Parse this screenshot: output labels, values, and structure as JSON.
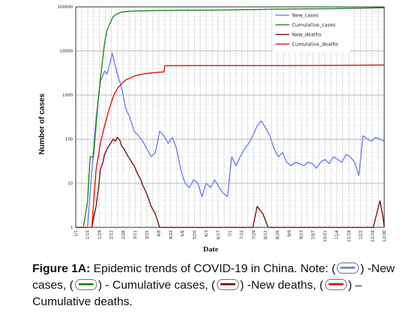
{
  "chart_data": {
    "type": "line",
    "title": "",
    "xlabel": "Date",
    "ylabel": "Number of cases",
    "y_scale": "log",
    "ylim": [
      1,
      100000
    ],
    "y_ticks": [
      1,
      10,
      100,
      1000,
      10000,
      100000
    ],
    "y_tick_labels": [
      "1",
      "10",
      "100",
      "1000",
      "10000",
      "100000"
    ],
    "x_tick_labels": [
      "1/1",
      "1/15",
      "1/29",
      "2/12",
      "2/26",
      "3/11",
      "3/25",
      "4/8",
      "4/22",
      "5/6",
      "5/20",
      "6/3",
      "6/17",
      "7/1",
      "7/15",
      "7/29",
      "8/12",
      "8/26",
      "9/9",
      "9/23",
      "10/7",
      "10/21",
      "11/4",
      "11/18",
      "12/2",
      "12/16",
      "12/30"
    ],
    "grid": true,
    "legend_position": "top-right",
    "series": [
      {
        "name": "New_cases",
        "color": "#6f7ff0",
        "x": [
          1,
          15,
          20,
          25,
          30,
          35,
          38,
          42,
          44,
          50,
          55,
          60,
          65,
          70,
          75,
          80,
          85,
          90,
          95,
          100,
          105,
          110,
          115,
          120,
          125,
          130,
          135,
          140,
          145,
          150,
          155,
          160,
          165,
          170,
          175,
          180,
          185,
          190,
          195,
          200,
          205,
          210,
          215,
          220,
          225,
          230,
          235,
          240,
          245,
          250,
          255,
          260,
          265,
          270,
          275,
          280,
          285,
          290,
          295,
          300,
          305,
          310,
          315,
          320,
          325,
          330,
          335,
          340,
          345,
          350,
          355,
          360,
          365
        ],
        "y": [
          1,
          1,
          20,
          300,
          2000,
          3500,
          3000,
          6000,
          9000,
          3000,
          1500,
          500,
          300,
          150,
          120,
          90,
          60,
          40,
          50,
          150,
          120,
          80,
          110,
          60,
          20,
          10,
          8,
          12,
          10,
          5,
          10,
          8,
          12,
          8,
          6,
          5,
          40,
          25,
          40,
          60,
          80,
          120,
          200,
          260,
          180,
          120,
          60,
          40,
          50,
          30,
          25,
          30,
          28,
          25,
          30,
          28,
          22,
          30,
          35,
          28,
          40,
          35,
          30,
          45,
          40,
          30,
          15,
          120,
          100,
          90,
          110,
          100,
          90
        ]
      },
      {
        "name": "Cumulative_cases",
        "color": "#1e8c1e",
        "x": [
          1,
          10,
          15,
          18,
          22,
          25,
          28,
          32,
          35,
          38,
          42,
          45,
          50,
          55,
          60,
          65,
          70,
          80,
          90,
          100,
          110,
          120,
          130,
          150,
          180,
          210,
          240,
          270,
          300,
          330,
          365
        ],
        "y": [
          1,
          1,
          4,
          40,
          40,
          200,
          1000,
          5000,
          15000,
          30000,
          45000,
          60000,
          70000,
          76000,
          78000,
          79500,
          80500,
          81500,
          82000,
          82500,
          83000,
          83500,
          84000,
          84500,
          85000,
          87000,
          89000,
          90000,
          91000,
          93000,
          96000
        ]
      },
      {
        "name": "New_deaths",
        "color": "#7a1010",
        "x": [
          20,
          23,
          25,
          28,
          30,
          33,
          35,
          38,
          40,
          42,
          45,
          48,
          50,
          53,
          55,
          58,
          60,
          63,
          65,
          68,
          70,
          73,
          75,
          78,
          80,
          83,
          86,
          90,
          95,
          100,
          105,
          110,
          115,
          120,
          200,
          210,
          215,
          222,
          228,
          235,
          250,
          290,
          320,
          352,
          360,
          363,
          365
        ],
        "y": [
          1,
          2,
          3,
          8,
          20,
          30,
          45,
          60,
          70,
          80,
          100,
          90,
          110,
          95,
          70,
          60,
          50,
          40,
          35,
          28,
          25,
          18,
          15,
          12,
          9,
          7,
          5,
          3,
          2,
          1,
          1,
          1,
          1,
          1,
          1,
          1,
          3,
          2,
          1,
          1,
          1,
          1,
          1,
          1,
          4,
          2,
          1
        ]
      },
      {
        "name": "Cumulative_deaths",
        "color": "#e81010",
        "x": [
          1,
          20,
          25,
          30,
          35,
          40,
          45,
          50,
          55,
          60,
          70,
          80,
          90,
          100,
          105,
          106,
          150,
          200,
          250,
          300,
          365
        ],
        "y": [
          1,
          1,
          20,
          80,
          200,
          450,
          900,
          1400,
          1800,
          2200,
          2700,
          3000,
          3200,
          3300,
          3340,
          4630,
          4640,
          4650,
          4660,
          4700,
          4800
        ]
      }
    ]
  },
  "caption": {
    "lead": "Figure 1A:",
    "part1": " Epidemic trends of COVID-19 in China. Note: (",
    "part2": ") -New cases, (",
    "part3": ") - Cumulative cases, (",
    "part4": ") -New deaths, (",
    "part5": ") – Cumulative deaths."
  }
}
